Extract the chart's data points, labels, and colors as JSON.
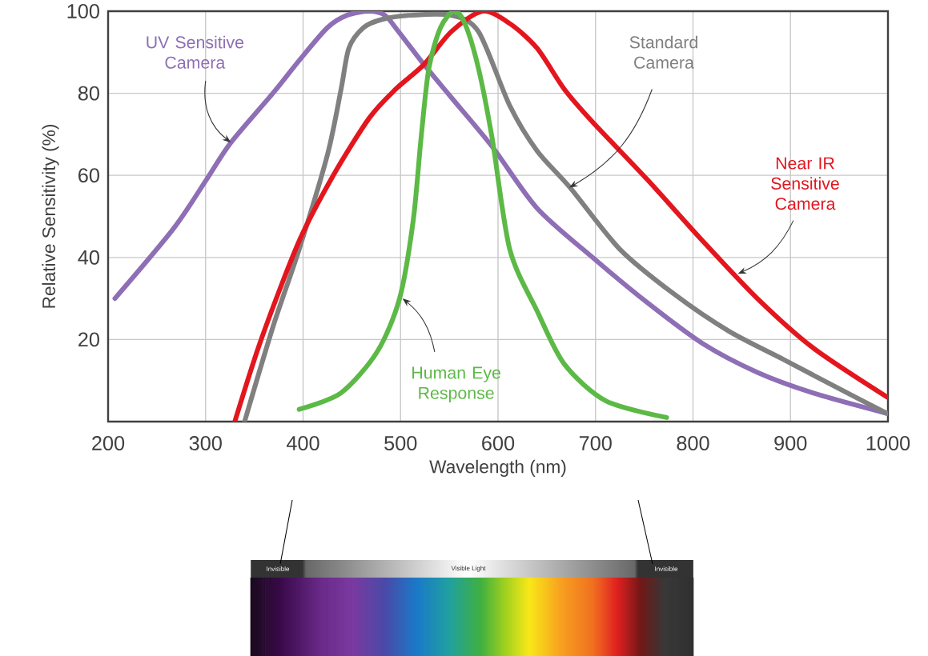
{
  "chart_data": {
    "type": "line",
    "xlabel": "Wavelength (nm)",
    "ylabel": "Relative Sensitivity (%)",
    "xlim": [
      200,
      1000
    ],
    "ylim": [
      0,
      100
    ],
    "xticks": [
      200,
      300,
      400,
      500,
      600,
      700,
      800,
      900,
      1000
    ],
    "yticks": [
      20,
      40,
      60,
      80,
      100
    ],
    "grid": true,
    "line_style": "solid",
    "annotations": [
      "Invisible",
      "Visible Light",
      "Invisible"
    ],
    "series": [
      {
        "name": "UV Sensitive Camera",
        "color": "#8e6fb5",
        "x": [
          207,
          267,
          301,
          326,
          369,
          396,
          425,
          445,
          468,
          484,
          498,
          524,
          552,
          594,
          640,
          697,
          753,
          810,
          866,
          923,
          999
        ],
        "values": [
          30,
          47,
          59,
          68,
          80,
          88,
          96,
          99,
          100,
          99,
          95,
          87,
          79,
          67,
          52,
          40,
          29,
          19,
          12,
          7,
          2
        ]
      },
      {
        "name": "Standard Camera",
        "color": "#808080",
        "x": [
          340,
          369,
          396,
          425,
          439,
          447,
          462,
          481,
          509,
          552,
          580,
          612,
          640,
          674,
          725,
          781,
          837,
          894,
          950,
          999
        ],
        "values": [
          0,
          23,
          42,
          65,
          81,
          91,
          96,
          98,
          99,
          99,
          95,
          77,
          66,
          57,
          42,
          31,
          22,
          15,
          8,
          2
        ]
      },
      {
        "name": "Near IR Sensitive Camera",
        "color": "#e3161e",
        "x": [
          330,
          357,
          396,
          431,
          468,
          495,
          524,
          552,
          584,
          612,
          640,
          668,
          697,
          753,
          810,
          866,
          923,
          999
        ],
        "values": [
          0,
          20,
          44,
          60,
          74,
          81,
          87,
          95,
          100,
          97,
          91,
          81,
          73,
          59,
          44,
          30,
          18,
          6
        ]
      },
      {
        "name": "Human Eye Response",
        "color": "#5cb946",
        "x": [
          396,
          439,
          476,
          499,
          513,
          521,
          529,
          541,
          555,
          566,
          580,
          594,
          612,
          640,
          668,
          711,
          773
        ],
        "values": [
          3,
          7,
          17,
          30,
          49,
          69,
          86,
          96,
          100,
          97,
          86,
          69,
          42,
          27,
          14,
          5,
          1
        ]
      }
    ]
  }
}
